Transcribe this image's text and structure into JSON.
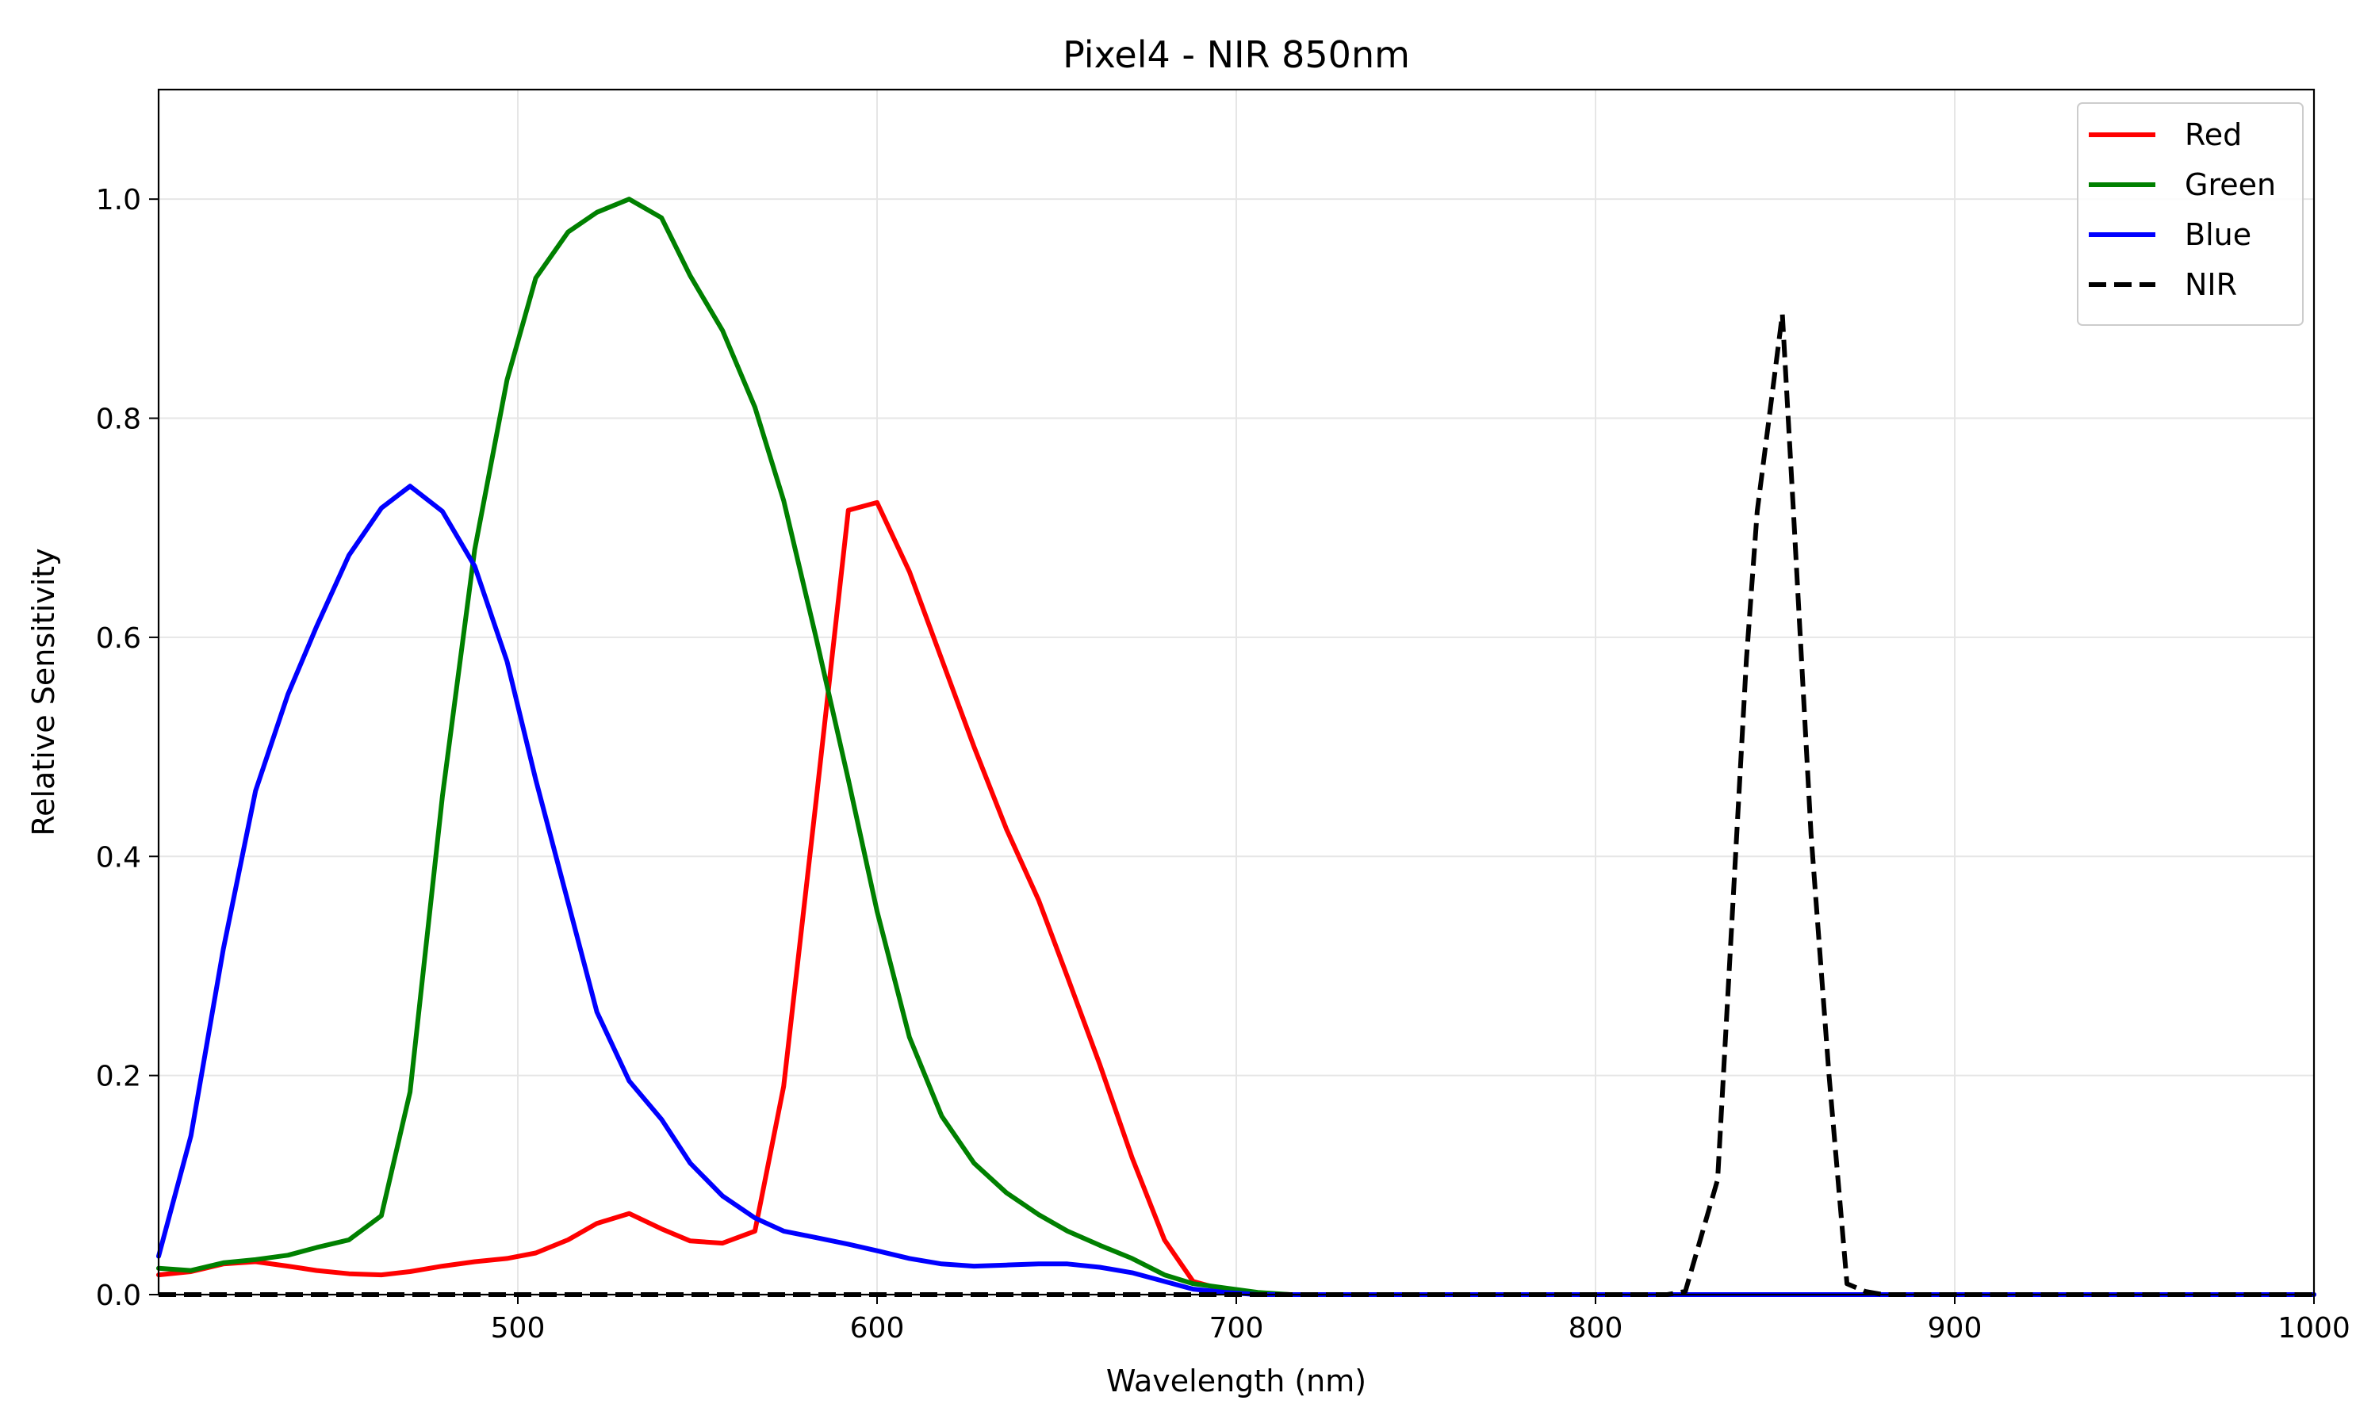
{
  "chart_data": {
    "type": "line",
    "title": "Pixel4 - NIR 850nm",
    "xlabel": "Wavelength (nm)",
    "ylabel": "Relative Sensitivity",
    "xlim": [
      400,
      1000
    ],
    "ylim": [
      0,
      1.1
    ],
    "xticks": [
      500,
      600,
      700,
      800,
      900,
      1000
    ],
    "xtick_labels": [
      "500",
      "600",
      "700",
      "800",
      "900",
      "1000"
    ],
    "yticks": [
      0.0,
      0.2,
      0.4,
      0.6,
      0.8,
      1.0
    ],
    "ytick_labels": [
      "0.0",
      "0.2",
      "0.4",
      "0.6",
      "0.8",
      "1.0"
    ],
    "grid": true,
    "legend_position": "top-right",
    "series": [
      {
        "name": "Red",
        "color": "#ff0000",
        "dash": "solid",
        "x": [
          400,
          409,
          418,
          427,
          436,
          444,
          453,
          462,
          470,
          479,
          488,
          497,
          505,
          514,
          522,
          531,
          540,
          548,
          557,
          566,
          574,
          583,
          592,
          600,
          609,
          618,
          627,
          636,
          645,
          653,
          662,
          671,
          680,
          688,
          697,
          706,
          715,
          750,
          800,
          850,
          900,
          1000
        ],
        "y": [
          0.018,
          0.021,
          0.028,
          0.03,
          0.026,
          0.022,
          0.019,
          0.018,
          0.021,
          0.026,
          0.03,
          0.033,
          0.038,
          0.05,
          0.065,
          0.074,
          0.06,
          0.049,
          0.047,
          0.058,
          0.19,
          0.45,
          0.716,
          0.723,
          0.66,
          0.58,
          0.5,
          0.425,
          0.36,
          0.29,
          0.21,
          0.125,
          0.05,
          0.012,
          0.004,
          0.001,
          0.0,
          0.0,
          0.0,
          0.0,
          0.0,
          0.0
        ]
      },
      {
        "name": "Green",
        "color": "#008000",
        "dash": "solid",
        "x": [
          400,
          409,
          418,
          427,
          436,
          444,
          453,
          462,
          470,
          479,
          488,
          497,
          505,
          514,
          522,
          531,
          540,
          548,
          557,
          566,
          574,
          583,
          592,
          600,
          609,
          618,
          627,
          636,
          645,
          653,
          662,
          671,
          680,
          688,
          697,
          706,
          715,
          750,
          800,
          850,
          900,
          1000
        ],
        "y": [
          0.024,
          0.022,
          0.029,
          0.032,
          0.036,
          0.043,
          0.05,
          0.072,
          0.185,
          0.455,
          0.68,
          0.835,
          0.928,
          0.97,
          0.988,
          1.0,
          0.983,
          0.93,
          0.88,
          0.81,
          0.725,
          0.6,
          0.47,
          0.35,
          0.235,
          0.163,
          0.12,
          0.093,
          0.073,
          0.058,
          0.045,
          0.033,
          0.018,
          0.01,
          0.006,
          0.002,
          0.0,
          0.0,
          0.0,
          0.0,
          0.0,
          0.0
        ]
      },
      {
        "name": "Blue",
        "color": "#0000ff",
        "dash": "solid",
        "x": [
          400,
          409,
          418,
          427,
          436,
          444,
          453,
          462,
          470,
          479,
          488,
          497,
          505,
          514,
          522,
          531,
          540,
          548,
          557,
          566,
          574,
          583,
          592,
          600,
          609,
          618,
          627,
          636,
          645,
          653,
          662,
          671,
          680,
          688,
          697,
          706,
          715,
          750,
          800,
          850,
          900,
          1000
        ],
        "y": [
          0.035,
          0.145,
          0.315,
          0.46,
          0.548,
          0.61,
          0.675,
          0.718,
          0.738,
          0.715,
          0.665,
          0.578,
          0.47,
          0.358,
          0.258,
          0.195,
          0.16,
          0.12,
          0.09,
          0.07,
          0.058,
          0.052,
          0.046,
          0.04,
          0.033,
          0.028,
          0.026,
          0.027,
          0.028,
          0.028,
          0.025,
          0.02,
          0.012,
          0.005,
          0.002,
          0.0,
          0.0,
          0.0,
          0.0,
          0.0,
          0.0,
          0.0
        ]
      },
      {
        "name": "NIR",
        "color": "#000000",
        "dash": "dashed",
        "x": [
          400,
          700,
          800,
          820,
          825,
          834,
          842,
          845,
          852,
          855,
          860,
          865,
          870,
          875,
          880,
          900,
          1000
        ],
        "y": [
          0.0,
          0.0,
          0.0,
          0.0,
          0.003,
          0.105,
          0.58,
          0.715,
          0.895,
          0.72,
          0.42,
          0.2,
          0.01,
          0.003,
          0.0,
          0.0,
          0.0
        ]
      }
    ]
  }
}
